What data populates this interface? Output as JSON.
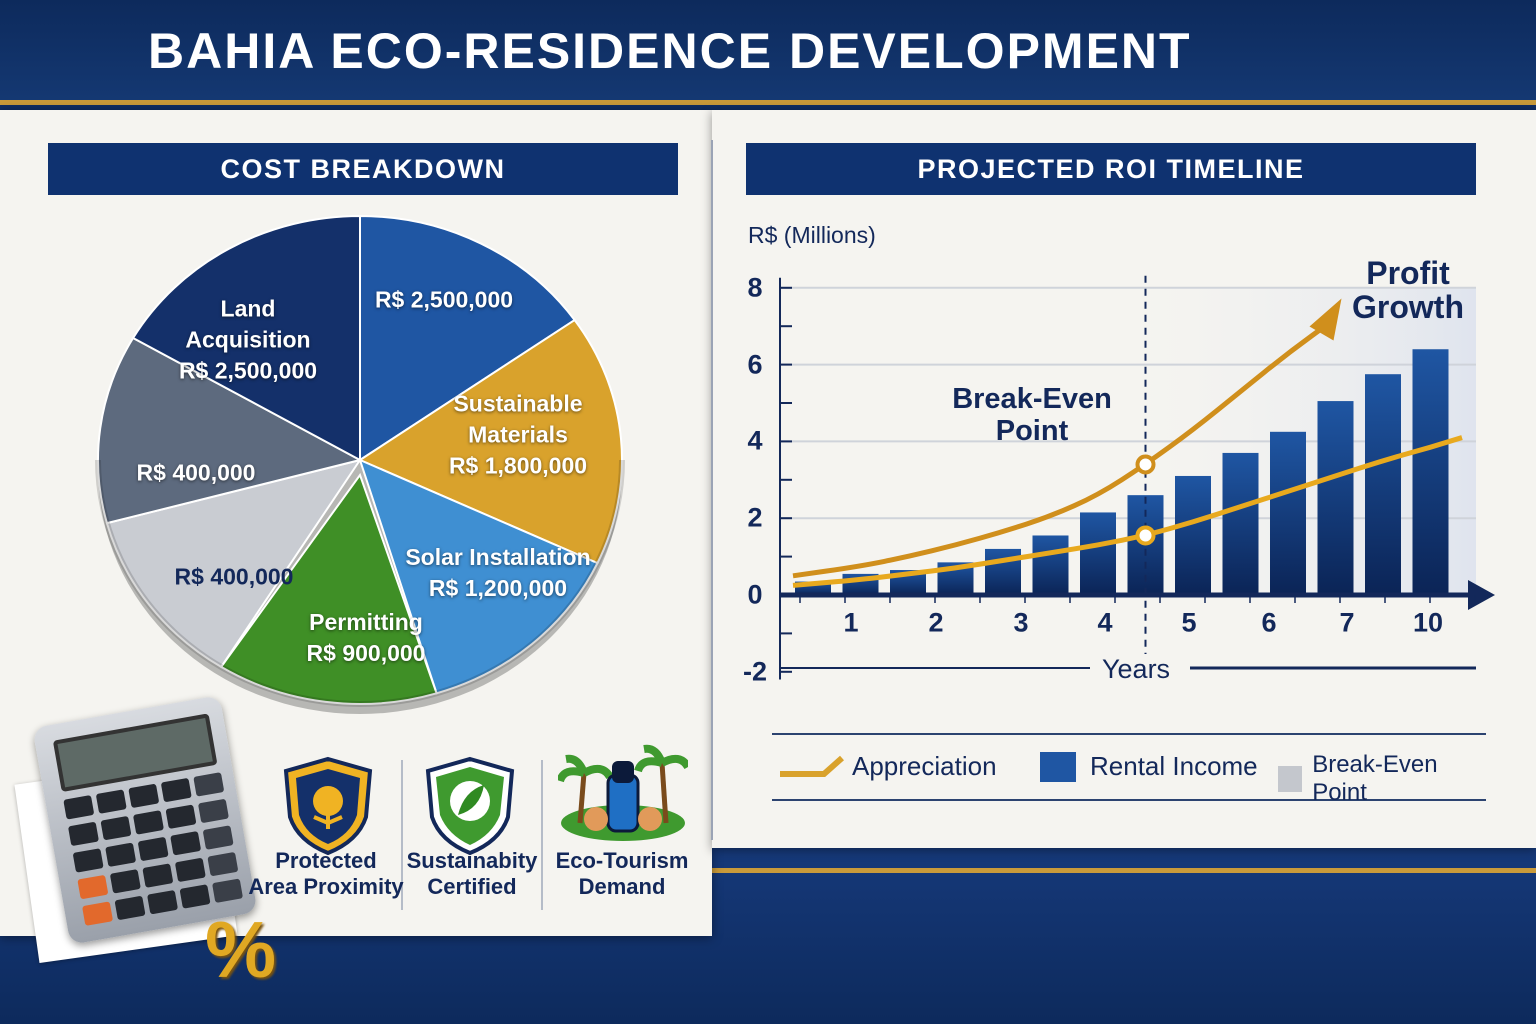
{
  "title": "BAHIA ECO-RESIDENCE DEVELOPMENT",
  "colors": {
    "navy": "#0f3270",
    "gold": "#d9a22c",
    "blue": "#1f56a3",
    "light_blue": "#3f8fd2",
    "green": "#3f8f26",
    "light_grey": "#c9ccd2",
    "dark_grey": "#5d6a7e",
    "land": "#14306a"
  },
  "cost_breakdown": {
    "header": "COST BREAKDOWN"
  },
  "roi": {
    "header": "PROJECTED ROI TIMELINE"
  },
  "chart_data": [
    {
      "type": "pie",
      "title": "COST BREAKDOWN",
      "slices": [
        {
          "label": "",
          "value_text": "R$ 2,500,000",
          "value": 2500000,
          "color": "#1f56a3"
        },
        {
          "label": "Sustainable Materials",
          "label_lines": [
            "Sustainable",
            "Materials"
          ],
          "value_text": "R$ 1,800,000",
          "value": 1800000,
          "color": "#d9a22c"
        },
        {
          "label": "Solar Installation",
          "label_lines": [
            "Solar Installation"
          ],
          "value_text": "R$ 1,200,000",
          "value": 1200000,
          "color": "#3f8fd2"
        },
        {
          "label": "Permitting",
          "label_lines": [
            "Permitting"
          ],
          "value_text": "R$ 900,000",
          "value": 900000,
          "color": "#3f8f26"
        },
        {
          "label": "",
          "value_text": "R$ 400,000",
          "value": 400000,
          "color": "#c9ccd2"
        },
        {
          "label": "",
          "value_text": "R$ 400,000",
          "value": 400000,
          "color": "#5d6a7e"
        },
        {
          "label": "Land Acquisition",
          "label_lines": [
            "Land",
            "Acquisition"
          ],
          "value_text": "R$ 2,500,000",
          "value": 2500000,
          "color": "#14306a"
        }
      ]
    },
    {
      "type": "bar",
      "title": "PROJECTED ROI TIMELINE",
      "ylabel": "R$ (Millions)",
      "xlabel": "Years",
      "ylim": [
        -2,
        8
      ],
      "yticks": [
        8,
        6,
        4,
        2,
        0,
        -2
      ],
      "xtick_labels": [
        "1",
        "2",
        "3",
        "4",
        "5",
        "6",
        "7",
        "10"
      ],
      "grid": true,
      "series": [
        {
          "name": "Rental Income",
          "type": "bar",
          "color": "#1f4f99",
          "values": [
            0.35,
            0.55,
            0.65,
            0.85,
            1.2,
            1.55,
            2.15,
            2.6,
            3.1,
            3.7,
            4.25,
            5.05,
            5.75,
            6.4
          ]
        },
        {
          "name": "Appreciation",
          "type": "line",
          "color": "#d08f1c",
          "values": [
            0.5,
            0.75,
            1.0,
            1.3,
            1.65,
            2.05,
            2.6,
            3.4,
            4.3,
            5.3,
            6.3,
            7.2
          ]
        },
        {
          "name": "",
          "type": "line",
          "color": "#e8a91e",
          "values": [
            0.25,
            0.4,
            0.55,
            0.7,
            0.9,
            1.1,
            1.3,
            1.55,
            1.9,
            2.3,
            2.7,
            3.1,
            3.5,
            3.85
          ]
        }
      ],
      "break_even_bar": 8,
      "annotations": {
        "break_even": [
          "Break-Even",
          "Point"
        ],
        "profit": [
          "Profit",
          "Growth"
        ]
      },
      "legend": {
        "position": "bottom",
        "items": [
          {
            "label": "Appreciation",
            "color": "#d9a22c"
          },
          {
            "label": "Rental Income",
            "color": "#1f56a3"
          },
          {
            "label": "Break-Even Point",
            "color": "#c4c7cd"
          }
        ]
      }
    }
  ],
  "badges": [
    {
      "lines": [
        "Protected",
        "Area Proximity"
      ],
      "icon": "shield-tree-icon"
    },
    {
      "lines": [
        "Sustainabity",
        "Certified"
      ],
      "icon": "shield-leaf-icon"
    },
    {
      "lines": [
        "Eco-Tourism",
        "Demand"
      ],
      "icon": "palm-tourist-icon"
    }
  ],
  "decor": {
    "percent_symbol": "%",
    "calculator_icon": "calculator-icon"
  }
}
